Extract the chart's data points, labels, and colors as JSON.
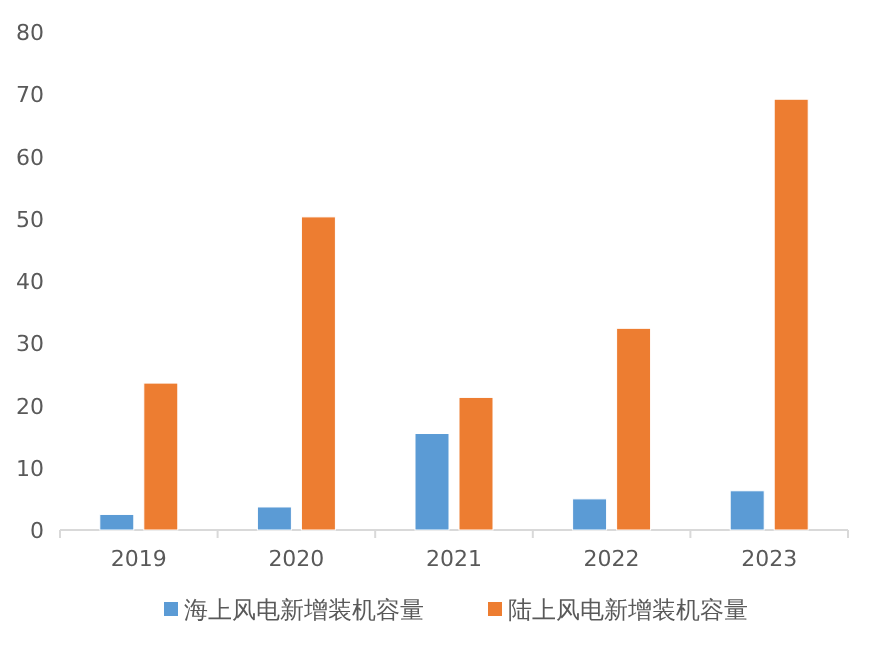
{
  "chart_data": {
    "type": "bar",
    "categories": [
      "2019",
      "2020",
      "2021",
      "2022",
      "2023"
    ],
    "series": [
      {
        "name": "海上风电新增装机容量",
        "color": "#5b9bd5",
        "values": [
          2.5,
          3.7,
          15.5,
          5.0,
          6.3
        ]
      },
      {
        "name": "陆上风电新增装机容量",
        "color": "#ed7d31",
        "values": [
          23.6,
          50.3,
          21.3,
          32.4,
          69.2
        ]
      }
    ],
    "ylim": [
      0,
      80
    ],
    "yticks": [
      0,
      10,
      20,
      30,
      40,
      50,
      60,
      70,
      80
    ],
    "grid": false,
    "legend": "bottom"
  }
}
